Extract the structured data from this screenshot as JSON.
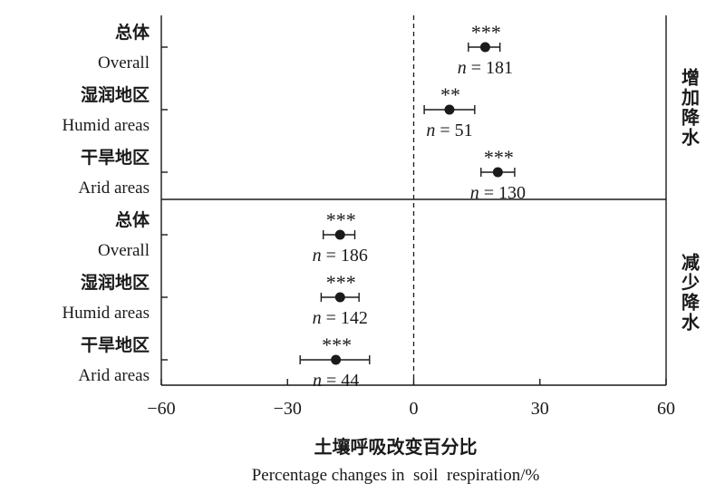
{
  "chart_data": {
    "type": "scatter",
    "xlabel_cn": "土壤呼吸改变百分比",
    "xlabel_en": "Percentage changes in  soil  respiration/%",
    "xlim": [
      -60,
      60
    ],
    "xticks": [
      -60,
      -30,
      0,
      30,
      60
    ],
    "xtick_labels": [
      "−60",
      "−30",
      "0",
      "30",
      "60"
    ],
    "reference_line": 0,
    "panels": [
      {
        "label": "增加降水",
        "groups": [
          {
            "label_cn": "总体",
            "label_en": "Overall",
            "mean": 17,
            "ci": [
              13,
              20.5
            ],
            "sig": "***",
            "n_prefix": "n",
            "n_text": " = 181"
          },
          {
            "label_cn": "湿润地区",
            "label_en": "Humid areas",
            "mean": 8.5,
            "ci": [
              2.5,
              14.5
            ],
            "sig": "**",
            "n_prefix": "n",
            "n_text": " = 51"
          },
          {
            "label_cn": "干旱地区",
            "label_en": "Arid areas",
            "mean": 20,
            "ci": [
              16,
              24
            ],
            "sig": "***",
            "n_prefix": "n",
            "n_text": " = 130"
          }
        ]
      },
      {
        "label": "减少降水",
        "groups": [
          {
            "label_cn": "总体",
            "label_en": "Overall",
            "mean": -17.5,
            "ci": [
              -21.5,
              -14
            ],
            "sig": "***",
            "n_prefix": "n",
            "n_text": " = 186"
          },
          {
            "label_cn": "湿润地区",
            "label_en": "Humid areas",
            "mean": -17.5,
            "ci": [
              -22,
              -13
            ],
            "sig": "***",
            "n_prefix": "n",
            "n_text": " = 142"
          },
          {
            "label_cn": "干旱地区",
            "label_en": "Arid areas",
            "mean": -18.5,
            "ci": [
              -27,
              -10.5
            ],
            "sig": "***",
            "n_prefix": "n",
            "n_text": " = 44"
          }
        ]
      }
    ]
  }
}
